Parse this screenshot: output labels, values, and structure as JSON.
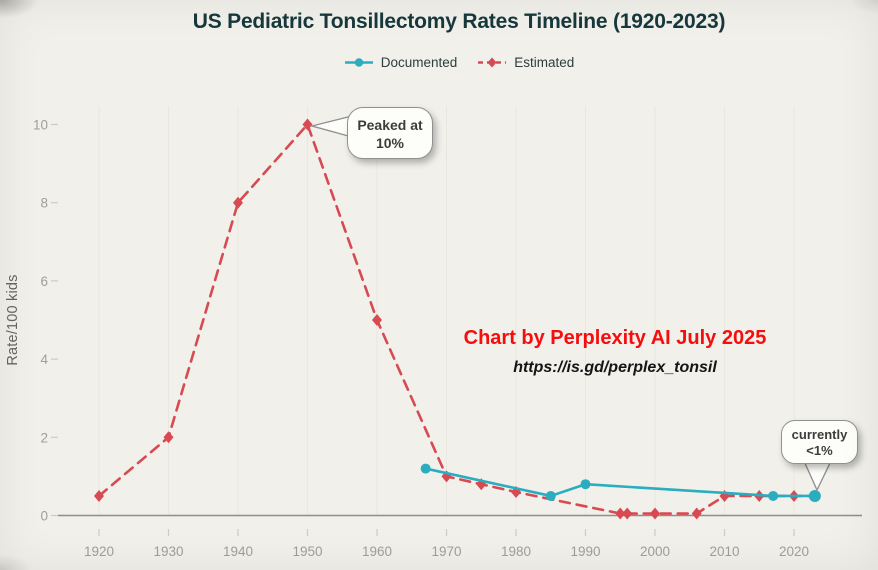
{
  "page": {
    "background": "#f1f0ea"
  },
  "watermark": {
    "credit": "Chart by Perplexity AI July 2025",
    "credit_color": "#f60d0d",
    "url": "https://is.gd/perplex_tonsil"
  },
  "chart_data": {
    "type": "line",
    "title": "US Pediatric Tonsillectomy Rates Timeline (1920-2023)",
    "xlabel": "",
    "ylabel": "Rate/100 kids",
    "xlim": [
      1914,
      2029
    ],
    "ylim": [
      0,
      10
    ],
    "x_ticks": [
      1920,
      1930,
      1940,
      1950,
      1960,
      1970,
      1980,
      1990,
      2000,
      2010,
      2020
    ],
    "y_ticks": [
      0,
      2,
      4,
      6,
      8,
      10
    ],
    "grid": "faint-vertical",
    "legend_position": "top-center",
    "series": [
      {
        "name": "Documented",
        "color": "#2aadbe",
        "line_style": "solid",
        "marker": "circle",
        "points": [
          [
            1967,
            1.2
          ],
          [
            1985,
            0.5
          ],
          [
            1990,
            0.8
          ],
          [
            2017,
            0.5
          ],
          [
            2023,
            0.5
          ]
        ]
      },
      {
        "name": "Estimated",
        "color": "#d84a52",
        "line_style": "dashed",
        "marker": "diamond",
        "points": [
          [
            1920,
            0.5
          ],
          [
            1930,
            2
          ],
          [
            1940,
            8
          ],
          [
            1950,
            10
          ],
          [
            1960,
            5
          ],
          [
            1970,
            1.0
          ],
          [
            1975,
            0.8
          ],
          [
            1980,
            0.6
          ],
          [
            1995,
            0.05
          ],
          [
            1996,
            0.05
          ],
          [
            2000,
            0.05
          ],
          [
            2006,
            0.05
          ],
          [
            2010,
            0.5
          ],
          [
            2015,
            0.5
          ],
          [
            2020,
            0.5
          ],
          [
            2023,
            0.5
          ]
        ]
      }
    ],
    "annotations": [
      {
        "id": "peak",
        "line1": "Peaked at",
        "line2": "10%",
        "anchor_x": 1950,
        "anchor_y": 10
      },
      {
        "id": "current",
        "line1": "currently",
        "line2": "<1%",
        "anchor_x": 2023,
        "anchor_y": 0.5
      }
    ]
  }
}
